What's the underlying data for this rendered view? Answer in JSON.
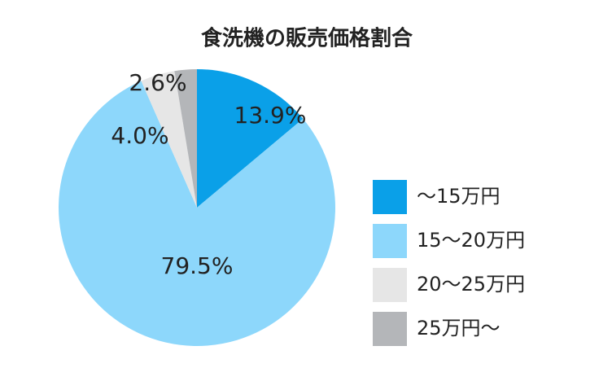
{
  "chart_data": {
    "type": "pie",
    "title": "食洗機の販売価格割合",
    "categories": [
      "〜15万円",
      "15〜20万円",
      "20〜25万円",
      "25万円〜"
    ],
    "values": [
      13.9,
      79.5,
      4.0,
      2.6
    ],
    "value_labels": [
      "13.9%",
      "79.5%",
      "4.0%",
      "2.6%"
    ],
    "colors": [
      "#0aa0e8",
      "#8dd7fb",
      "#e6e6e6",
      "#b4b6b9"
    ],
    "legend": "right"
  }
}
